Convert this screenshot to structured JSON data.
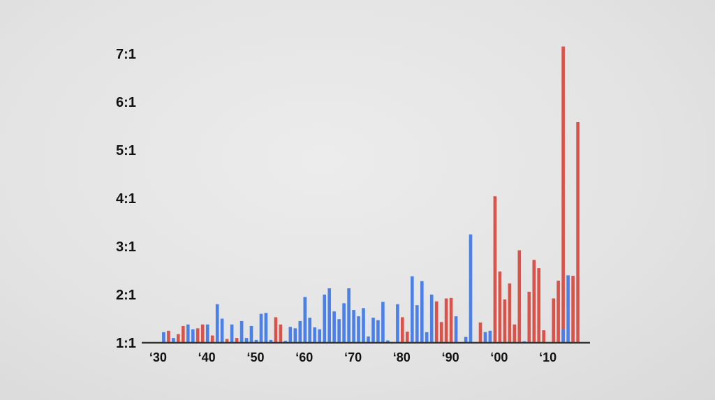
{
  "chart_data": {
    "type": "bar",
    "title": "",
    "xlabel": "",
    "ylabel": "",
    "y_tick_labels": [
      "1:1",
      "2:1",
      "3:1",
      "4:1",
      "5:1",
      "6:1",
      "7:1"
    ],
    "y_tick_values": [
      1,
      2,
      3,
      4,
      5,
      6,
      7
    ],
    "x_tick_labels": [
      "‘30",
      "‘40",
      "‘50",
      "‘60",
      "‘70",
      "‘80",
      "‘90",
      "‘00",
      "‘10"
    ],
    "x_tick_years": [
      1930,
      1940,
      1950,
      1960,
      1970,
      1980,
      1990,
      2000,
      2010
    ],
    "ylim": [
      1,
      7.3
    ],
    "xlim": [
      1926.5,
      2018.5
    ],
    "grid": false,
    "legend": "none",
    "colors": {
      "blue": "#4a80e8",
      "red": "#d9534a",
      "axis": "#333333"
    },
    "series": [
      {
        "color": "red",
        "x": [
          1932,
          1934,
          1935,
          1938,
          1939,
          1941,
          1944,
          1946,
          1954,
          1955,
          1980,
          1981,
          1987,
          1988,
          1989,
          1990,
          1996,
          1999,
          2000,
          2001,
          2002,
          2003,
          2004,
          2006,
          2007,
          2008,
          2009,
          2011,
          2012,
          2013,
          2015,
          2016
        ],
        "values": [
          1.25,
          1.18,
          1.35,
          1.3,
          1.38,
          1.15,
          1.08,
          1.1,
          1.53,
          1.38,
          1.53,
          1.23,
          1.86,
          1.43,
          1.92,
          1.93,
          1.42,
          4.04,
          2.48,
          1.9,
          2.23,
          1.38,
          2.92,
          2.06,
          2.72,
          2.55,
          1.26,
          1.92,
          2.29,
          7.15,
          2.39,
          5.58
        ]
      },
      {
        "color": "blue",
        "x": [
          1931,
          1933,
          1936,
          1937,
          1940,
          1942,
          1943,
          1945,
          1947,
          1948,
          1949,
          1950,
          1951,
          1952,
          1953,
          1956,
          1957,
          1958,
          1959,
          1960,
          1961,
          1962,
          1963,
          1964,
          1965,
          1966,
          1967,
          1968,
          1969,
          1970,
          1971,
          1972,
          1973,
          1974,
          1975,
          1976,
          1977,
          1979,
          1982,
          1983,
          1984,
          1985,
          1986,
          1991,
          1993,
          1994,
          1997,
          1998,
          2005,
          2014
        ],
        "values": [
          1.22,
          1.1,
          1.38,
          1.28,
          1.38,
          1.8,
          1.5,
          1.38,
          1.45,
          1.1,
          1.35,
          1.06,
          1.6,
          1.62,
          1.06,
          1.04,
          1.33,
          1.3,
          1.45,
          1.95,
          1.52,
          1.32,
          1.28,
          2.0,
          2.13,
          1.65,
          1.49,
          1.82,
          2.13,
          1.68,
          1.55,
          1.72,
          1.13,
          1.52,
          1.47,
          1.85,
          1.05,
          1.8,
          2.38,
          1.78,
          2.28,
          1.22,
          2.0,
          1.55,
          1.12,
          3.25,
          1.22,
          1.25,
          1.03,
          2.4
        ]
      },
      {
        "color": "blue",
        "x": [
          2013
        ],
        "values": [
          1.28
        ]
      }
    ]
  }
}
